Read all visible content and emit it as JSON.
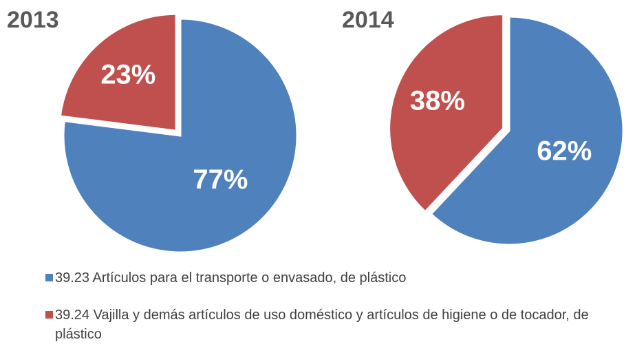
{
  "chart_data": [
    {
      "type": "pie",
      "title": "2013",
      "values": [
        77,
        23
      ],
      "value_labels": [
        "77%",
        "23%"
      ],
      "colors": [
        "#4f81bd",
        "#c0504d"
      ]
    },
    {
      "type": "pie",
      "title": "2014",
      "values": [
        62,
        38
      ],
      "value_labels": [
        "62%",
        "38%"
      ],
      "colors": [
        "#4f81bd",
        "#c0504d"
      ]
    }
  ],
  "legend": {
    "items": [
      "39.23 Artículos para el transporte o envasado, de plástico",
      "39.24 Vajilla y demás artículos de uso doméstico y artículos de higiene o de tocador, de plástico"
    ]
  }
}
